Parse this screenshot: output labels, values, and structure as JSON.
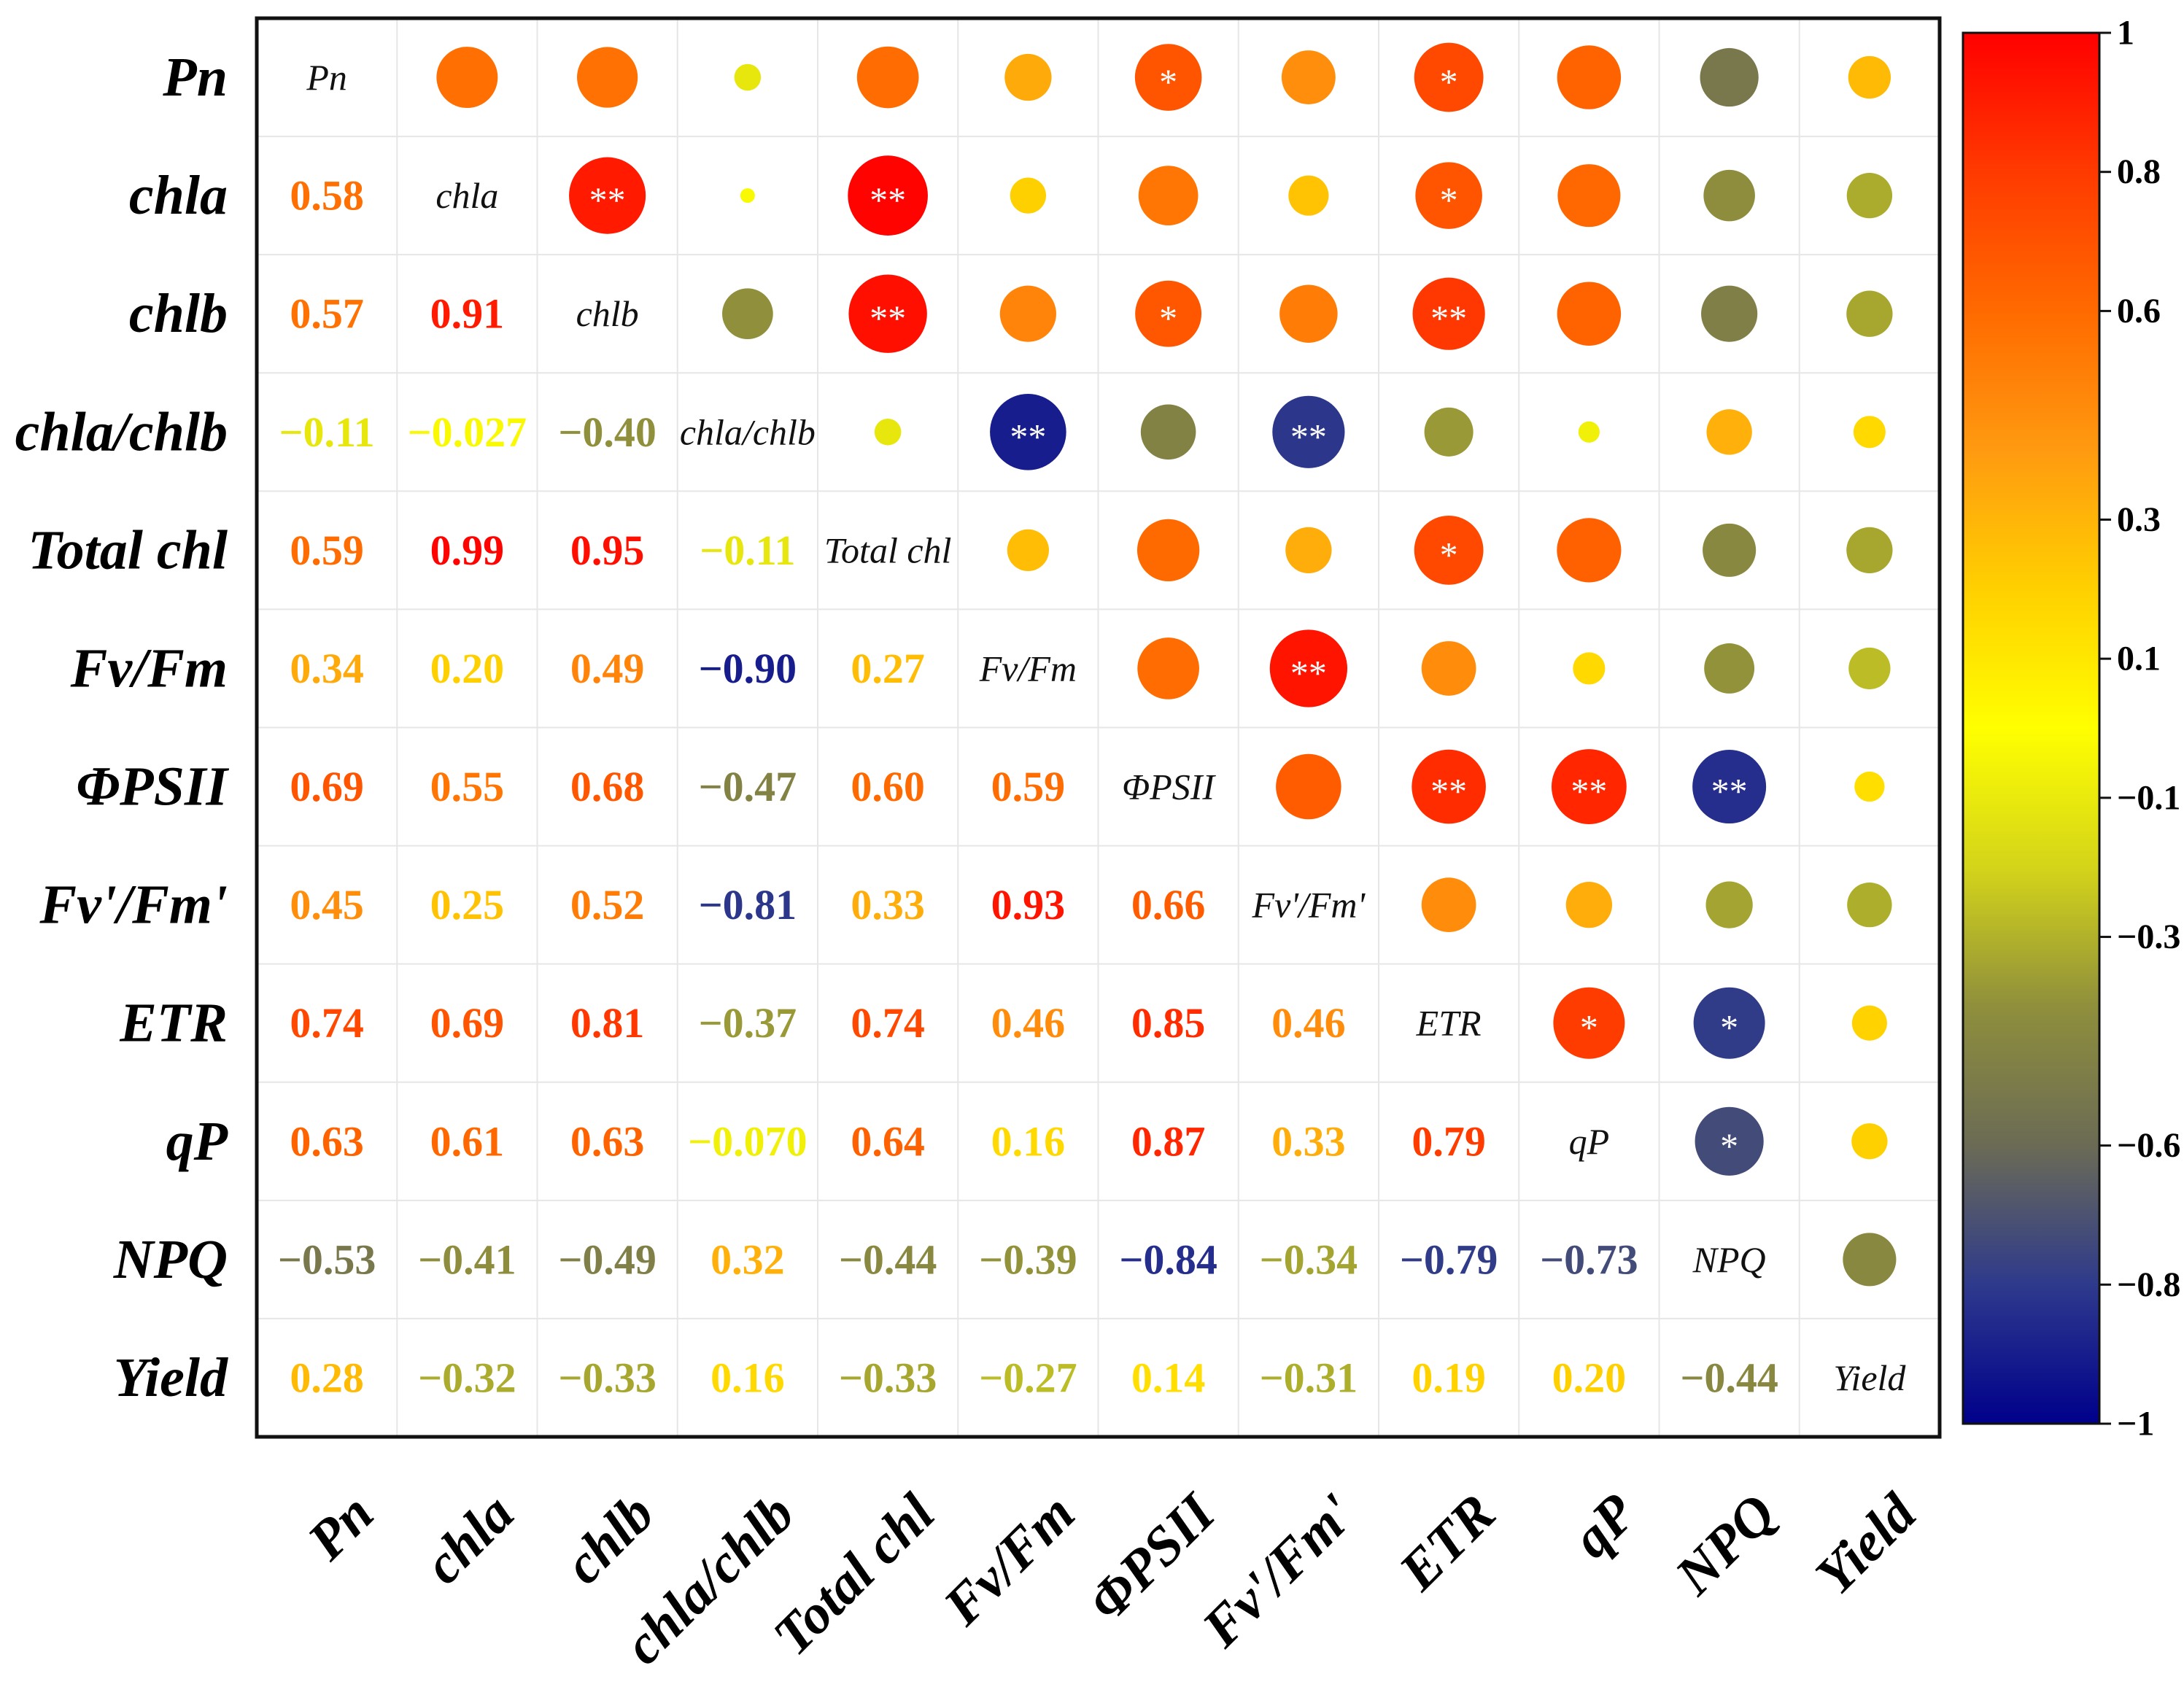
{
  "chart_data": {
    "type": "heatmap",
    "subtype": "correlation-matrix",
    "variables": [
      "Pn",
      "chla",
      "chlb",
      "chla/chlb",
      "Total chl",
      "Fv/Fm",
      "ΦPSII",
      "Fv'/Fm'",
      "ETR",
      "qP",
      "NPQ",
      "Yield"
    ],
    "matrix": [
      [
        1,
        0.58,
        0.57,
        -0.11,
        0.59,
        0.34,
        0.69,
        0.45,
        0.74,
        0.63,
        -0.53,
        0.28
      ],
      [
        0.58,
        1,
        0.91,
        -0.027,
        0.99,
        0.2,
        0.55,
        0.25,
        0.69,
        0.61,
        -0.41,
        -0.32
      ],
      [
        0.57,
        0.91,
        1,
        -0.4,
        0.95,
        0.49,
        0.68,
        0.52,
        0.81,
        0.63,
        -0.49,
        -0.33
      ],
      [
        -0.11,
        -0.027,
        -0.4,
        1,
        -0.11,
        -0.9,
        -0.47,
        -0.81,
        -0.37,
        -0.07,
        0.32,
        0.16
      ],
      [
        0.59,
        0.99,
        0.95,
        -0.11,
        1,
        0.27,
        0.6,
        0.33,
        0.74,
        0.64,
        -0.44,
        -0.33
      ],
      [
        0.34,
        0.2,
        0.49,
        -0.9,
        0.27,
        1,
        0.59,
        0.93,
        0.46,
        0.16,
        -0.39,
        -0.27
      ],
      [
        0.69,
        0.55,
        0.68,
        -0.47,
        0.6,
        0.59,
        1,
        0.66,
        0.85,
        0.87,
        -0.84,
        0.14
      ],
      [
        0.45,
        0.25,
        0.52,
        -0.81,
        0.33,
        0.93,
        0.66,
        1,
        0.46,
        0.33,
        -0.34,
        -0.31
      ],
      [
        0.74,
        0.69,
        0.81,
        -0.37,
        0.74,
        0.46,
        0.85,
        0.46,
        1,
        0.79,
        -0.79,
        0.19
      ],
      [
        0.63,
        0.61,
        0.63,
        -0.07,
        0.64,
        0.16,
        0.87,
        0.33,
        0.79,
        1,
        -0.73,
        0.2
      ],
      [
        -0.53,
        -0.41,
        -0.49,
        0.32,
        -0.44,
        -0.39,
        -0.84,
        -0.34,
        -0.79,
        -0.73,
        1,
        -0.44
      ],
      [
        0.28,
        -0.32,
        -0.33,
        0.16,
        -0.33,
        -0.27,
        0.14,
        -0.31,
        0.19,
        0.2,
        -0.44,
        1
      ]
    ],
    "lower_labels": [
      [
        null,
        null,
        null,
        null,
        null,
        null,
        null,
        null,
        null,
        null,
        null,
        null
      ],
      [
        "0.58",
        null,
        null,
        null,
        null,
        null,
        null,
        null,
        null,
        null,
        null,
        null
      ],
      [
        "0.57",
        "0.91",
        null,
        null,
        null,
        null,
        null,
        null,
        null,
        null,
        null,
        null
      ],
      [
        "−0.11",
        "−0.027",
        "−0.40",
        null,
        null,
        null,
        null,
        null,
        null,
        null,
        null,
        null
      ],
      [
        "0.59",
        "0.99",
        "0.95",
        "−0.11",
        null,
        null,
        null,
        null,
        null,
        null,
        null,
        null
      ],
      [
        "0.34",
        "0.20",
        "0.49",
        "−0.90",
        "0.27",
        null,
        null,
        null,
        null,
        null,
        null,
        null
      ],
      [
        "0.69",
        "0.55",
        "0.68",
        "−0.47",
        "0.60",
        "0.59",
        null,
        null,
        null,
        null,
        null,
        null
      ],
      [
        "0.45",
        "0.25",
        "0.52",
        "−0.81",
        "0.33",
        "0.93",
        "0.66",
        null,
        null,
        null,
        null,
        null
      ],
      [
        "0.74",
        "0.69",
        "0.81",
        "−0.37",
        "0.74",
        "0.46",
        "0.85",
        "0.46",
        null,
        null,
        null,
        null
      ],
      [
        "0.63",
        "0.61",
        "0.63",
        "−0.070",
        "0.64",
        "0.16",
        "0.87",
        "0.33",
        "0.79",
        null,
        null,
        null
      ],
      [
        "−0.53",
        "−0.41",
        "−0.49",
        "0.32",
        "−0.44",
        "−0.39",
        "−0.84",
        "−0.34",
        "−0.79",
        "−0.73",
        null,
        null
      ],
      [
        "0.28",
        "−0.32",
        "−0.33",
        "0.16",
        "−0.33",
        "−0.27",
        "0.14",
        "−0.31",
        "0.19",
        "0.20",
        "−0.44",
        null
      ]
    ],
    "significance": [
      [
        "",
        "",
        "",
        "",
        "",
        "",
        "*",
        "",
        "*",
        "",
        "",
        ""
      ],
      [
        "",
        "",
        "**",
        "",
        "**",
        "",
        "",
        "",
        "*",
        "",
        "",
        ""
      ],
      [
        "",
        "",
        "",
        "",
        "**",
        "",
        "*",
        "",
        "**",
        "",
        "",
        ""
      ],
      [
        "",
        "",
        "",
        "",
        "",
        "**",
        "",
        "**",
        "",
        "",
        "",
        ""
      ],
      [
        "",
        "",
        "",
        "",
        "",
        "",
        "",
        "",
        "*",
        "",
        "",
        ""
      ],
      [
        "",
        "",
        "",
        "",
        "",
        "",
        "",
        "**",
        "",
        "",
        "",
        ""
      ],
      [
        "",
        "",
        "",
        "",
        "",
        "",
        "",
        "",
        "**",
        "**",
        "**",
        ""
      ],
      [
        "",
        "",
        "",
        "",
        "",
        "",
        "",
        "",
        "",
        "",
        "",
        ""
      ],
      [
        "",
        "",
        "",
        "",
        "",
        "",
        "",
        "",
        "",
        "*",
        "*",
        ""
      ],
      [
        "",
        "",
        "",
        "",
        "",
        "",
        "",
        "",
        "",
        "",
        "*",
        ""
      ],
      [
        "",
        "",
        "",
        "",
        "",
        "",
        "",
        "",
        "",
        "",
        "",
        ""
      ],
      [
        "",
        "",
        "",
        "",
        "",
        "",
        "",
        "",
        "",
        "",
        "",
        ""
      ]
    ],
    "colorbar": {
      "range": [
        -1,
        1
      ],
      "ticks": [
        1,
        0.8,
        0.6,
        0.3,
        0.1,
        -0.1,
        -0.3,
        -0.6,
        -0.8,
        -1
      ],
      "tick_labels": [
        "1",
        "0.8",
        "0.6",
        "0.3",
        "0.1",
        "−0.1",
        "−0.3",
        "−0.6",
        "−0.8",
        "−1"
      ],
      "colors": [
        "#00008b",
        "#2e3a8c",
        "#6b6b55",
        "#8f8f3c",
        "#d4d41a",
        "#ffff00",
        "#ffd000",
        "#ff9a10",
        "#ff6a00",
        "#ff3a00",
        "#ff0000"
      ]
    },
    "title": "",
    "xlabel": "",
    "ylabel": ""
  }
}
